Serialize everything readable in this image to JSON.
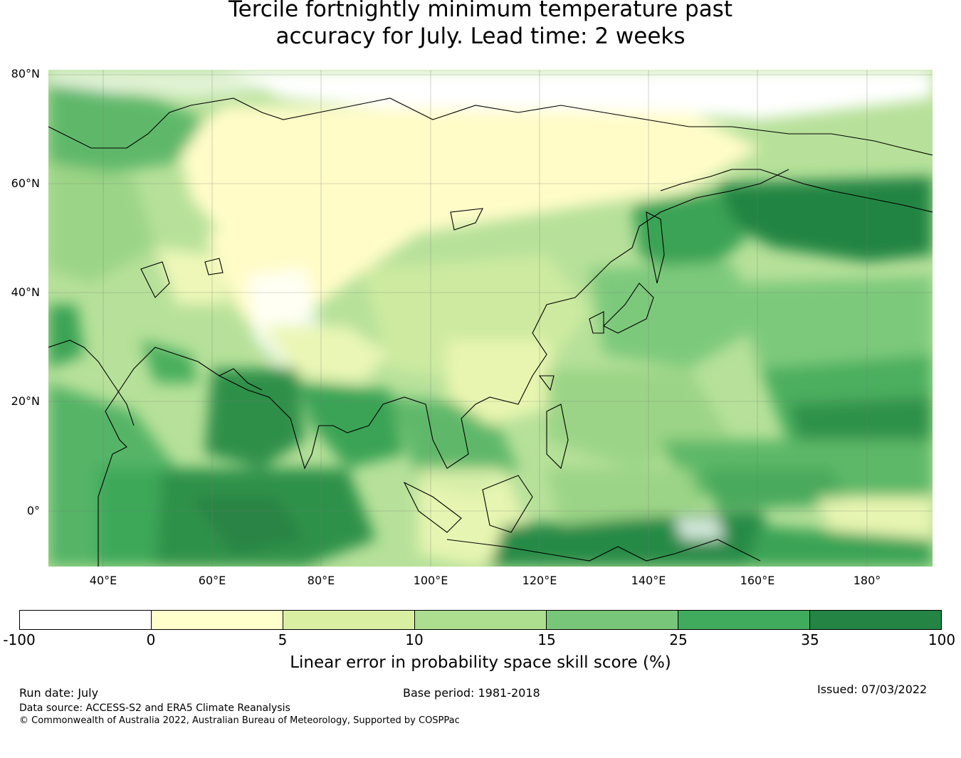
{
  "title_line1": "Tercile fortnightly minimum temperature past",
  "title_line2": "accuracy for July. Lead time: 2 weeks",
  "map": {
    "lat_labels": [
      "80°N",
      "60°N",
      "40°N",
      "20°N",
      "0°"
    ],
    "lon_labels": [
      "40°E",
      "60°E",
      "80°E",
      "100°E",
      "120°E",
      "140°E",
      "160°E",
      "180°"
    ],
    "lat_range": [
      -10,
      80
    ],
    "lon_range": [
      30,
      192
    ]
  },
  "colorbar": {
    "ticks": [
      "-100",
      "0",
      "5",
      "10",
      "15",
      "25",
      "35",
      "100"
    ],
    "colors": [
      "#ffffff",
      "#ffffcc",
      "#d9f0a3",
      "#addd8e",
      "#78c679",
      "#41ab5d",
      "#238443"
    ],
    "label": "Linear error in probability space skill score (%)"
  },
  "footer": {
    "run_date": "Run date: July",
    "base_period": "Base period: 1981-2018",
    "issued": "Issued: 07/03/2022",
    "data_source": "Data source: ACCESS-S2 and ERA5 Climate Reanalysis",
    "copyright": "© Commonwealth of Australia 2022, Australian Bureau of Meteorology, Supported by COSPPac"
  }
}
